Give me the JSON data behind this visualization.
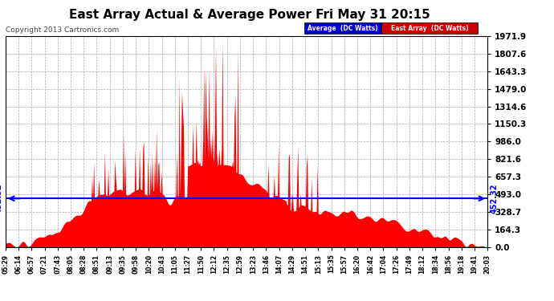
{
  "title": "East Array Actual & Average Power Fri May 31 20:15",
  "copyright": "Copyright 2013 Cartronics.com",
  "legend_avg": "Average  (DC Watts)",
  "legend_east": "East Array  (DC Watts)",
  "avg_line_value": 452.32,
  "avg_label": "452.32",
  "ymax": 1971.9,
  "yticks": [
    0.0,
    164.3,
    328.7,
    493.0,
    657.3,
    821.6,
    986.0,
    1150.3,
    1314.6,
    1479.0,
    1643.3,
    1807.6,
    1971.9
  ],
  "x_labels": [
    "05:29",
    "06:14",
    "06:57",
    "07:21",
    "07:43",
    "08:05",
    "08:28",
    "08:51",
    "09:13",
    "09:35",
    "09:58",
    "10:20",
    "10:43",
    "11:05",
    "11:27",
    "11:50",
    "12:12",
    "12:35",
    "12:59",
    "13:23",
    "13:46",
    "14:07",
    "14:29",
    "14:51",
    "15:13",
    "15:35",
    "15:57",
    "16:20",
    "16:42",
    "17:04",
    "17:26",
    "17:49",
    "18:12",
    "18:34",
    "18:56",
    "19:18",
    "19:41",
    "20:03"
  ],
  "bg_color": "#ffffff",
  "fill_color": "#ff0000",
  "avg_line_color": "#0000ff",
  "grid_color": "#aaaaaa",
  "title_color": "#000000"
}
